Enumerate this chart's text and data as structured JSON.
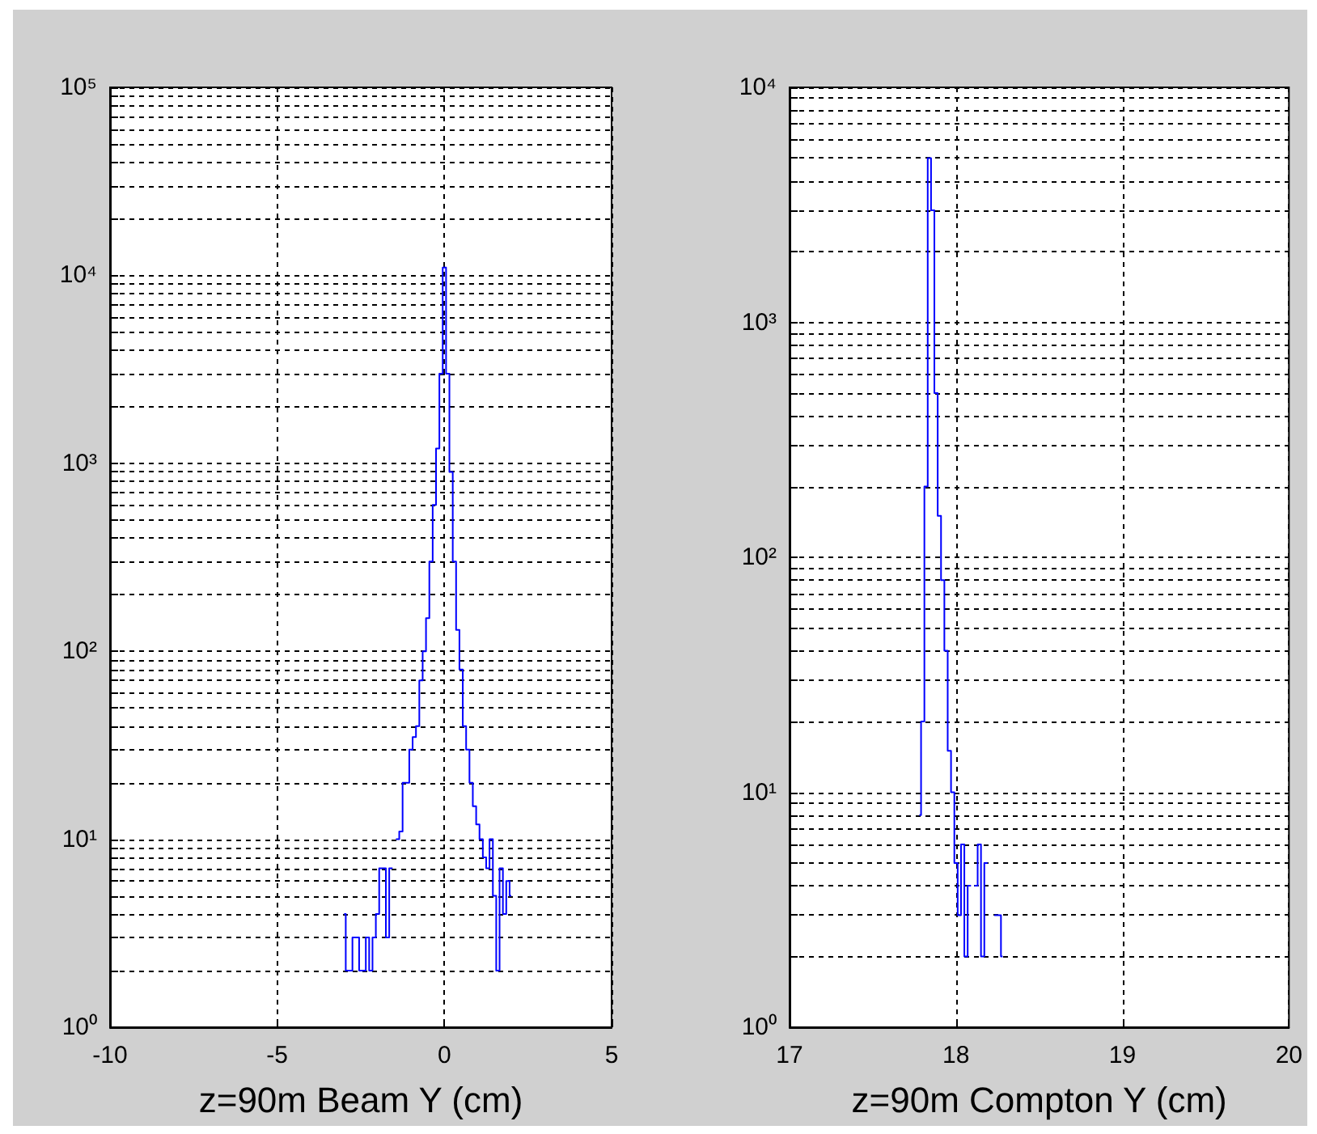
{
  "chart_data": [
    {
      "type": "step",
      "xlabel": "z=90m Beam Y (cm)",
      "log": "y",
      "grid": true,
      "marker": "none",
      "line_style": "solid",
      "xlim": [
        -10,
        5
      ],
      "xticks": [
        -10,
        -5,
        0,
        5
      ],
      "ylim": [
        1,
        100000
      ],
      "yticks": [
        {
          "value": 1,
          "label": "10⁰"
        },
        {
          "value": 2,
          "label": null
        },
        {
          "value": 3,
          "label": null
        },
        {
          "value": 4,
          "label": null
        },
        {
          "value": 5,
          "label": null
        },
        {
          "value": 6,
          "label": null
        },
        {
          "value": 7,
          "label": null
        },
        {
          "value": 8,
          "label": null
        },
        {
          "value": 9,
          "label": null
        },
        {
          "value": 10,
          "label": "10¹"
        },
        {
          "value": 20,
          "label": null
        },
        {
          "value": 30,
          "label": null
        },
        {
          "value": 40,
          "label": null
        },
        {
          "value": 50,
          "label": null
        },
        {
          "value": 60,
          "label": null
        },
        {
          "value": 70,
          "label": null
        },
        {
          "value": 80,
          "label": null
        },
        {
          "value": 90,
          "label": null
        },
        {
          "value": 100,
          "label": "10²"
        },
        {
          "value": 200,
          "label": null
        },
        {
          "value": 300,
          "label": null
        },
        {
          "value": 400,
          "label": null
        },
        {
          "value": 500,
          "label": null
        },
        {
          "value": 600,
          "label": null
        },
        {
          "value": 700,
          "label": null
        },
        {
          "value": 800,
          "label": null
        },
        {
          "value": 900,
          "label": null
        },
        {
          "value": 1000,
          "label": "10³"
        },
        {
          "value": 2000,
          "label": null
        },
        {
          "value": 3000,
          "label": null
        },
        {
          "value": 4000,
          "label": null
        },
        {
          "value": 5000,
          "label": null
        },
        {
          "value": 6000,
          "label": null
        },
        {
          "value": 7000,
          "label": null
        },
        {
          "value": 8000,
          "label": null
        },
        {
          "value": 9000,
          "label": null
        },
        {
          "value": 10000,
          "label": "10⁴"
        },
        {
          "value": 20000,
          "label": null
        },
        {
          "value": 30000,
          "label": null
        },
        {
          "value": 40000,
          "label": null
        },
        {
          "value": 50000,
          "label": null
        },
        {
          "value": 60000,
          "label": null
        },
        {
          "value": 70000,
          "label": null
        },
        {
          "value": 80000,
          "label": null
        },
        {
          "value": 90000,
          "label": null
        },
        {
          "value": 100000,
          "label": "10⁵"
        }
      ],
      "series": [
        {
          "color": "#0000ff",
          "x": [
            -3.0,
            -2.9,
            -2.8,
            -2.7,
            -2.6,
            -2.5,
            -2.4,
            -2.3,
            -2.2,
            -2.1,
            -2.0,
            -1.9,
            -1.8,
            -1.7,
            -1.6,
            -1.5,
            -1.4,
            -1.3,
            -1.2,
            -1.1,
            -1.0,
            -0.9,
            -0.8,
            -0.7,
            -0.6,
            -0.5,
            -0.4,
            -0.3,
            -0.2,
            -0.1,
            0.0,
            0.1,
            0.2,
            0.3,
            0.4,
            0.5,
            0.6,
            0.7,
            0.8,
            0.9,
            1.0,
            1.1,
            1.2,
            1.3,
            1.4,
            1.5,
            1.6,
            1.7,
            1.8,
            1.9,
            2.0
          ],
          "values": [
            4,
            2,
            2,
            3,
            3,
            2,
            2,
            3,
            2,
            3,
            4,
            7,
            7,
            3,
            7,
            null,
            10,
            11,
            20,
            20,
            30,
            35,
            40,
            70,
            100,
            150,
            300,
            600,
            1200,
            3000,
            11000,
            3000,
            900,
            300,
            130,
            80,
            40,
            30,
            20,
            15,
            12,
            10,
            8,
            7,
            10,
            5,
            2,
            7,
            4,
            6,
            5
          ]
        }
      ]
    },
    {
      "type": "step",
      "xlabel": "z=90m Compton Y (cm)",
      "log": "y",
      "grid": true,
      "marker": "none",
      "line_style": "solid",
      "xlim": [
        17,
        20
      ],
      "xticks": [
        17,
        18,
        19,
        20
      ],
      "ylim": [
        1,
        10000
      ],
      "yticks": [
        {
          "value": 1,
          "label": "10⁰"
        },
        {
          "value": 2,
          "label": null
        },
        {
          "value": 3,
          "label": null
        },
        {
          "value": 4,
          "label": null
        },
        {
          "value": 5,
          "label": null
        },
        {
          "value": 6,
          "label": null
        },
        {
          "value": 7,
          "label": null
        },
        {
          "value": 8,
          "label": null
        },
        {
          "value": 9,
          "label": null
        },
        {
          "value": 10,
          "label": "10¹"
        },
        {
          "value": 20,
          "label": null
        },
        {
          "value": 30,
          "label": null
        },
        {
          "value": 40,
          "label": null
        },
        {
          "value": 50,
          "label": null
        },
        {
          "value": 60,
          "label": null
        },
        {
          "value": 70,
          "label": null
        },
        {
          "value": 80,
          "label": null
        },
        {
          "value": 90,
          "label": null
        },
        {
          "value": 100,
          "label": "10²"
        },
        {
          "value": 200,
          "label": null
        },
        {
          "value": 300,
          "label": null
        },
        {
          "value": 400,
          "label": null
        },
        {
          "value": 500,
          "label": null
        },
        {
          "value": 600,
          "label": null
        },
        {
          "value": 700,
          "label": null
        },
        {
          "value": 800,
          "label": null
        },
        {
          "value": 900,
          "label": null
        },
        {
          "value": 1000,
          "label": "10³"
        },
        {
          "value": 2000,
          "label": null
        },
        {
          "value": 3000,
          "label": null
        },
        {
          "value": 4000,
          "label": null
        },
        {
          "value": 5000,
          "label": null
        },
        {
          "value": 6000,
          "label": null
        },
        {
          "value": 7000,
          "label": null
        },
        {
          "value": 8000,
          "label": null
        },
        {
          "value": 9000,
          "label": null
        },
        {
          "value": 10000,
          "label": "10⁴"
        }
      ],
      "series": [
        {
          "color": "#0000ff",
          "x": [
            17.78,
            17.8,
            17.82,
            17.84,
            17.86,
            17.88,
            17.9,
            17.92,
            17.94,
            17.96,
            17.98,
            18.0,
            18.02,
            18.04,
            18.06,
            18.08,
            18.1,
            18.12,
            18.14,
            18.16,
            18.18,
            18.2,
            18.22,
            18.24,
            18.26,
            18.28
          ],
          "values": [
            8,
            20,
            200,
            5000,
            3000,
            500,
            150,
            80,
            40,
            15,
            10,
            5,
            3,
            6,
            2,
            4,
            null,
            4,
            6,
            2,
            5,
            null,
            null,
            3,
            3,
            2
          ]
        }
      ]
    }
  ]
}
